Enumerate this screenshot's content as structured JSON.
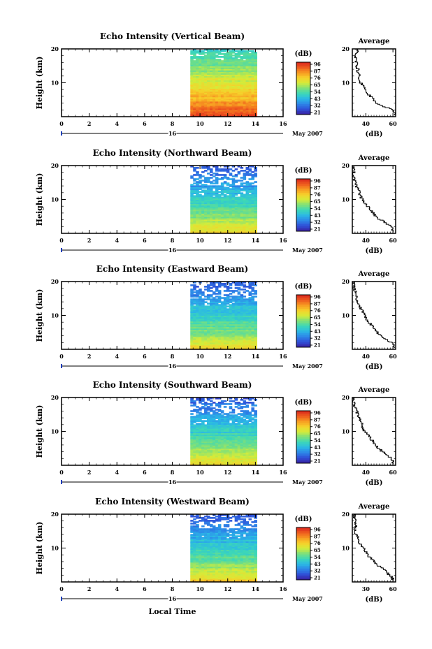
{
  "chart_data": {
    "type": "heatmap",
    "x_range": [
      0,
      16
    ],
    "x_ticks": [
      "0",
      "2",
      "4",
      "6",
      "8",
      "10",
      "12",
      "14",
      "16"
    ],
    "y_range": [
      0,
      20
    ],
    "y_ticks": [
      "20",
      "10"
    ],
    "y_label": "Height (km)",
    "colorbar_title": "(dB)",
    "colorbar_ticks": [
      "96",
      "87",
      "76",
      "65",
      "54",
      "43",
      "32",
      "21"
    ],
    "colorscale": [
      "#3a1f9e",
      "#2f4fd8",
      "#2d86e8",
      "#2bb8e6",
      "#3cd7b8",
      "#7ee07a",
      "#d4ec3a",
      "#f7d02a",
      "#f79a22",
      "#ee5a1e",
      "#d8231d"
    ],
    "date_day": "16",
    "date_month_year": "May 2007",
    "x_label": "Local Time",
    "data_time_range": [
      9.3,
      14.1
    ],
    "average_title": "Average",
    "average_y_ticks": [
      "20",
      "10"
    ],
    "average_x_label": "(dB)",
    "panels": [
      {
        "title": "Echo Intensity (Vertical Beam)",
        "low_level_intensity": 0.98,
        "top_level_intensity": 0.38,
        "sparse_from_km": 19.5,
        "average_x_ticks": [
          "40",
          "60"
        ],
        "average_x_range": [
          30,
          62
        ],
        "average_profile": {
          "height_km": [
            1,
            2,
            3,
            4,
            5,
            6,
            7,
            8,
            9,
            10,
            11,
            12,
            13,
            14,
            15,
            16,
            17,
            18,
            19,
            20
          ],
          "db": [
            61,
            60,
            52,
            47,
            46,
            43,
            40,
            39,
            38,
            36,
            35,
            35,
            34,
            34,
            33,
            33,
            32,
            33,
            34,
            33
          ]
        }
      },
      {
        "title": "Echo Intensity (Northward Beam)",
        "low_level_intensity": 0.72,
        "top_level_intensity": 0.12,
        "sparse_from_km": 14,
        "average_x_ticks": [
          "40",
          "60"
        ],
        "average_x_range": [
          30,
          62
        ],
        "average_profile": {
          "height_km": [
            1,
            2,
            3,
            4,
            5,
            6,
            7,
            8,
            9,
            10,
            11,
            12,
            13,
            14,
            15,
            16,
            17,
            18,
            19,
            20
          ],
          "db": [
            60,
            58,
            55,
            50,
            47,
            45,
            43,
            41,
            39,
            37,
            36,
            35,
            34,
            33,
            32,
            31,
            31,
            31,
            31,
            30
          ]
        }
      },
      {
        "title": "Echo Intensity (Eastward Beam)",
        "low_level_intensity": 0.72,
        "top_level_intensity": 0.12,
        "sparse_from_km": 15,
        "average_x_ticks": [
          "40",
          "60"
        ],
        "average_x_range": [
          30,
          62
        ],
        "average_profile": {
          "height_km": [
            1,
            2,
            3,
            4,
            5,
            6,
            7,
            8,
            9,
            10,
            11,
            12,
            13,
            14,
            15,
            16,
            17,
            18,
            19,
            20
          ],
          "db": [
            61,
            58,
            54,
            51,
            48,
            46,
            44,
            42,
            40,
            39,
            38,
            36,
            35,
            34,
            33,
            32,
            32,
            31,
            31,
            31
          ]
        }
      },
      {
        "title": "Echo Intensity (Southward Beam)",
        "low_level_intensity": 0.72,
        "top_level_intensity": 0.12,
        "sparse_from_km": 15,
        "average_x_ticks": [
          "40",
          "60"
        ],
        "average_x_range": [
          30,
          62
        ],
        "average_profile": {
          "height_km": [
            1,
            2,
            3,
            4,
            5,
            6,
            7,
            8,
            9,
            10,
            11,
            12,
            13,
            14,
            15,
            16,
            17,
            18,
            19,
            20
          ],
          "db": [
            60,
            59,
            55,
            52,
            49,
            47,
            45,
            43,
            41,
            39,
            38,
            37,
            36,
            35,
            34,
            33,
            32,
            31,
            31,
            31
          ]
        }
      },
      {
        "title": "Echo Intensity (Westward Beam)",
        "low_level_intensity": 0.74,
        "top_level_intensity": 0.12,
        "sparse_from_km": 16,
        "average_x_ticks": [
          "30",
          "60"
        ],
        "average_x_range": [
          30,
          62
        ],
        "average_profile": {
          "height_km": [
            1,
            2,
            3,
            4,
            5,
            6,
            7,
            8,
            9,
            10,
            11,
            12,
            13,
            14,
            15,
            16,
            17,
            18,
            19,
            20
          ],
          "db": [
            60,
            57,
            55,
            52,
            48,
            46,
            43,
            41,
            40,
            38,
            36,
            34,
            34,
            33,
            32,
            32,
            33,
            32,
            31,
            32
          ]
        }
      }
    ]
  }
}
